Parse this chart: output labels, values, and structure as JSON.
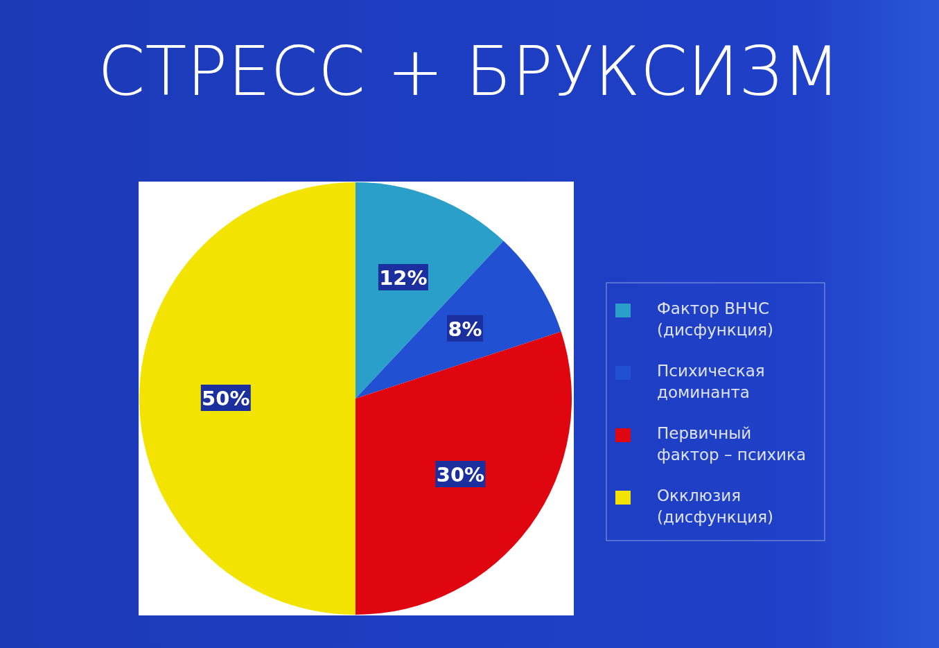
{
  "chart_data": {
    "type": "pie",
    "title": "СТРЕСС + БРУКСИЗМ",
    "categories": [
      "Фактор ВНЧС (дисфункция)",
      "Психическая доминанта",
      "Первичный фактор – психика",
      "Окклюзия (дисфункция)"
    ],
    "values": [
      12,
      8,
      30,
      50
    ],
    "value_labels": [
      "12%",
      "8%",
      "30%",
      "50%"
    ],
    "colors": [
      "#2a9fca",
      "#2150d2",
      "#e0060f",
      "#f2e400"
    ],
    "legend": "right"
  }
}
